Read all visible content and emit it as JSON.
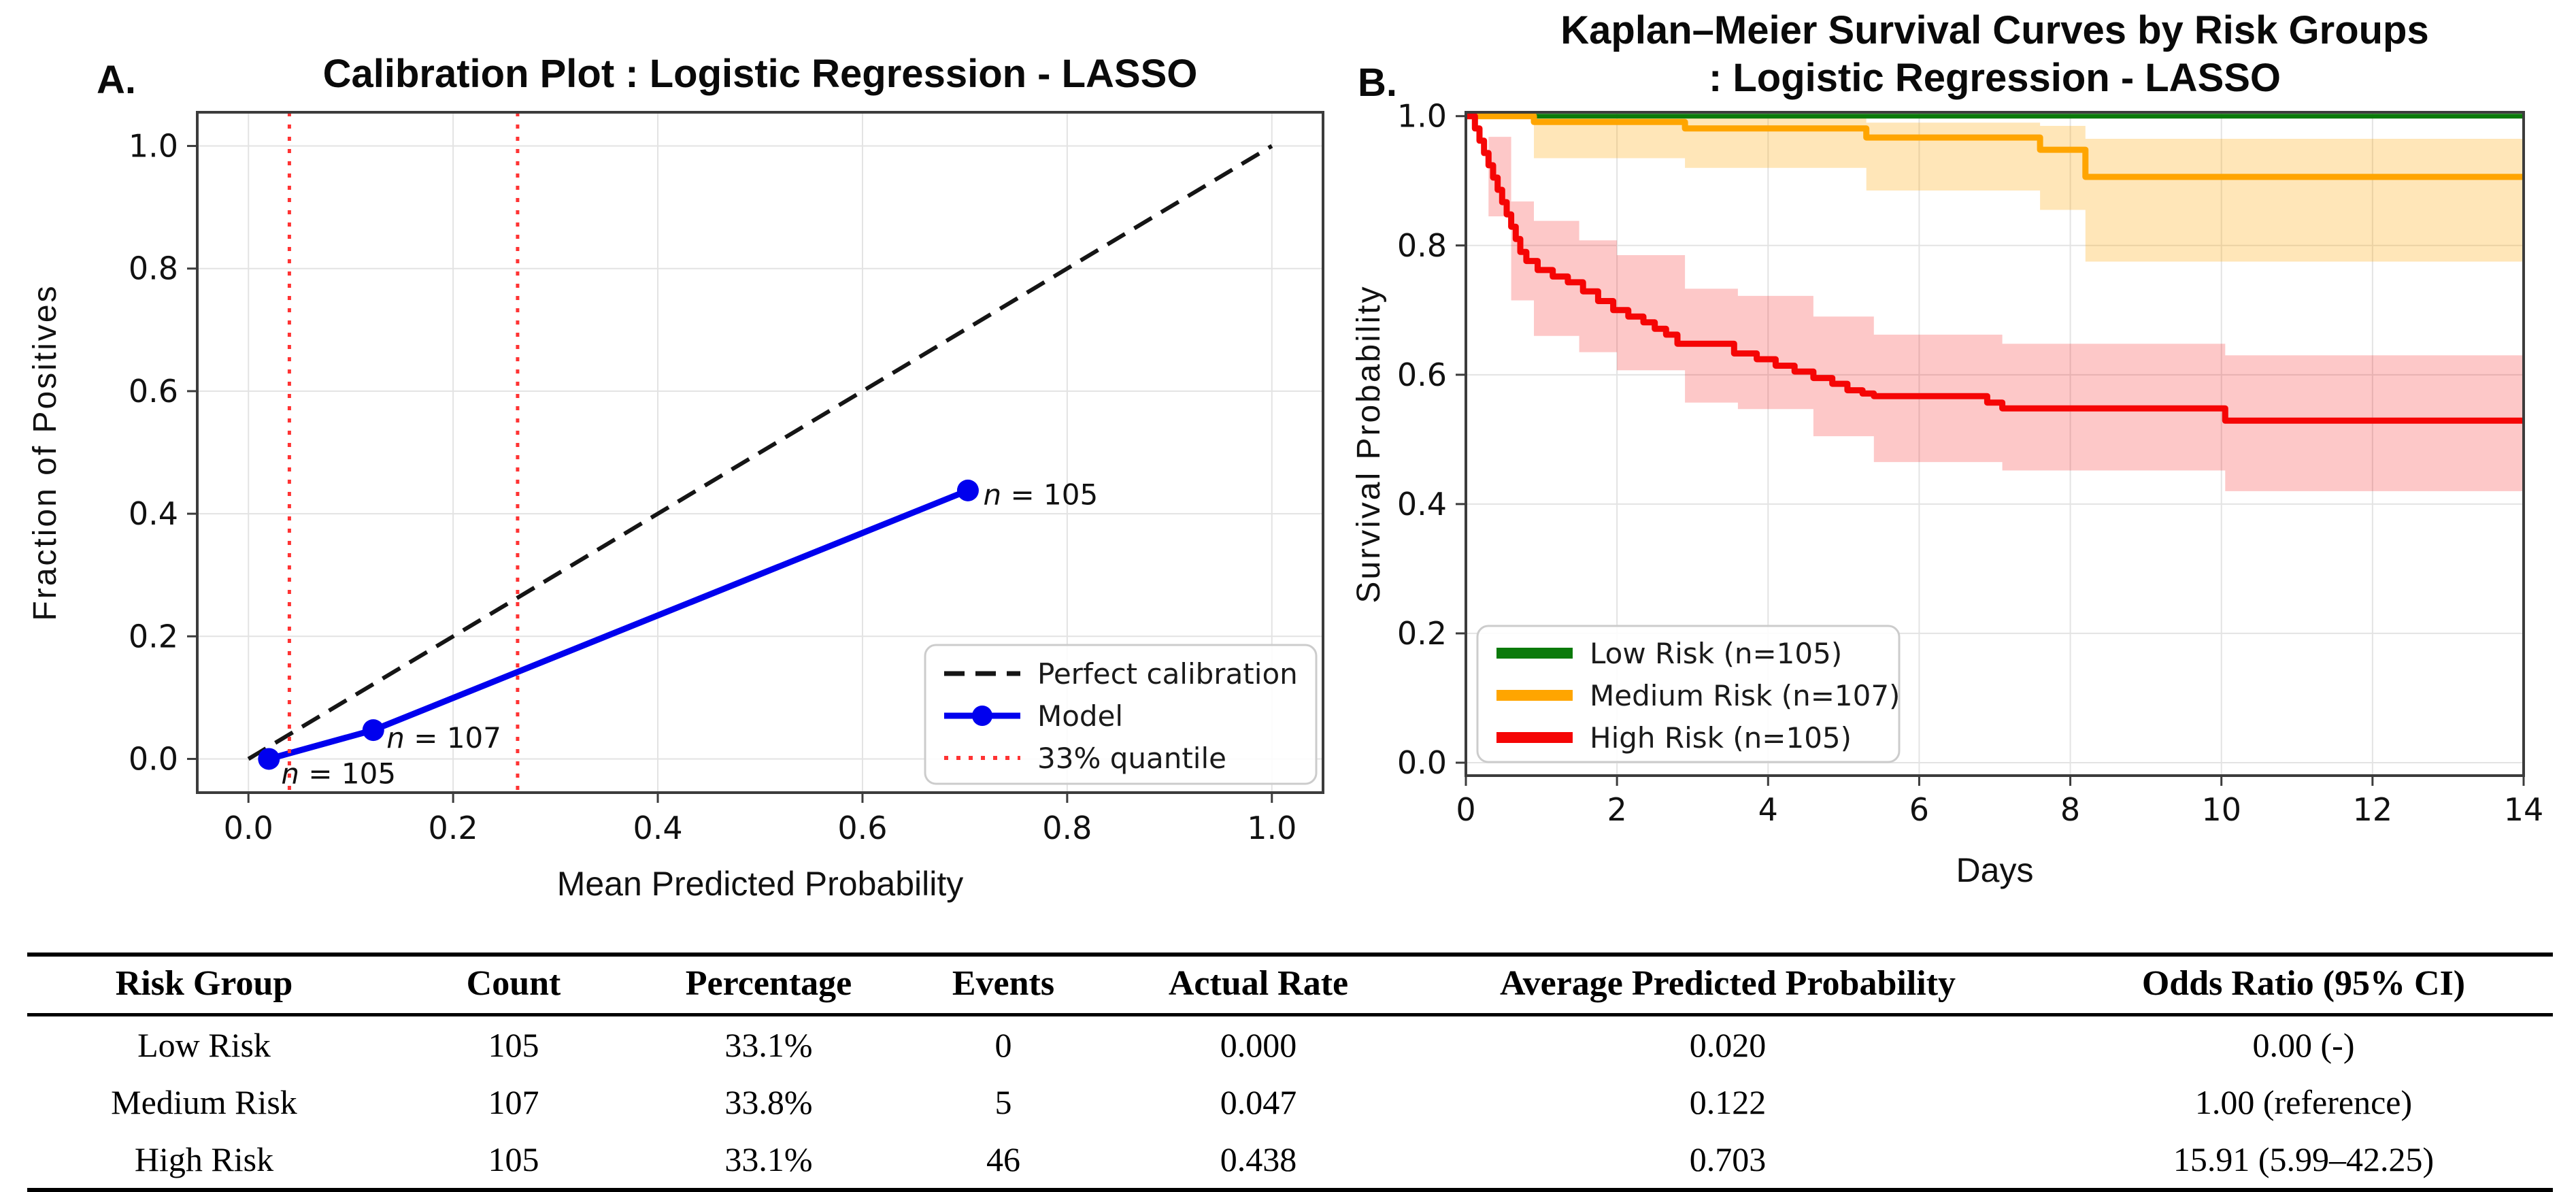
{
  "figure": {
    "panel_a_label": "A.",
    "panel_b_label": "B.",
    "background": "#ffffff"
  },
  "colors": {
    "grid": "#e3e3e3",
    "spine": "#3c3c3c",
    "text": "#111111",
    "model_blue": "#0000ee",
    "perfect_black": "#151515",
    "quantile_red": "#ff3333",
    "low_risk_green": "#0b7a0b",
    "medium_risk_orange": "#ffa500",
    "high_risk_red": "#f50505"
  },
  "chart_data": [
    {
      "id": "calibration",
      "type": "line",
      "title": "Calibration Plot : Logistic Regression - LASSO",
      "xlabel": "Mean Predicted Probability",
      "ylabel": "Fraction of Positives",
      "xlim": [
        -0.05,
        1.05
      ],
      "ylim": [
        -0.055,
        1.055
      ],
      "grid": true,
      "xticks": [
        0.0,
        0.2,
        0.4,
        0.6,
        0.8,
        1.0
      ],
      "xtick_labels": [
        "0.0",
        "0.2",
        "0.4",
        "0.6",
        "0.8",
        "1.0"
      ],
      "yticks": [
        0.0,
        0.2,
        0.4,
        0.6,
        0.8,
        1.0
      ],
      "ytick_labels": [
        "0.0",
        "0.2",
        "0.4",
        "0.6",
        "0.8",
        "1.0"
      ],
      "series": [
        {
          "name": "Perfect calibration",
          "kind": "line",
          "color": "#151515",
          "width": 6,
          "dash": "30 16",
          "points": {
            "x": [
              0,
              1
            ],
            "y": [
              0,
              1
            ]
          }
        },
        {
          "name": "Model",
          "kind": "line",
          "color": "#0000ee",
          "width": 9,
          "marker": 16,
          "points": {
            "x": [
              0.02,
              0.122,
              0.703
            ],
            "y": [
              0.0,
              0.047,
              0.438
            ]
          }
        },
        {
          "name": "33% quantile",
          "kind": "vlines",
          "color": "#ff3333",
          "width": 5,
          "dash": "6 12",
          "xs": [
            0.04,
            0.263
          ]
        }
      ],
      "annotations": [
        {
          "text": "n = 105",
          "x": 0.032,
          "y": -0.04
        },
        {
          "text": "n = 107",
          "x": 0.135,
          "y": 0.018
        },
        {
          "text": "n = 105",
          "x": 0.718,
          "y": 0.415
        }
      ],
      "legend": {
        "position": "lower right",
        "items": [
          {
            "label": "Perfect calibration",
            "swatch": "dash",
            "color": "#151515"
          },
          {
            "label": "Model",
            "swatch": "dot-line",
            "color": "#0000ee"
          },
          {
            "label": "33% quantile",
            "swatch": "dotted",
            "color": "#ff3333"
          }
        ]
      }
    },
    {
      "id": "km",
      "type": "step",
      "title_lines": [
        "Kaplan–Meier Survival Curves by Risk Groups",
        ": Logistic Regression - LASSO"
      ],
      "xlabel": "Days",
      "ylabel": "Survival Probability",
      "xlim": [
        0,
        14
      ],
      "ylim": [
        -0.02,
        1.006
      ],
      "grid": true,
      "xticks": [
        0,
        2,
        4,
        6,
        8,
        10,
        12,
        14
      ],
      "xtick_labels": [
        "0",
        "2",
        "4",
        "6",
        "8",
        "10",
        "12",
        "14"
      ],
      "yticks": [
        0.0,
        0.2,
        0.4,
        0.6,
        0.8,
        1.0
      ],
      "ytick_labels": [
        "0.0",
        "0.2",
        "0.4",
        "0.6",
        "0.8",
        "1.0"
      ],
      "series": [
        {
          "name": "Low Risk (n=105)",
          "kind": "step",
          "color": "#0b7a0b",
          "width": 7,
          "x": [
            0
          ],
          "y": [
            1.0
          ],
          "end": 14
        },
        {
          "name": "Medium Risk (n=107)",
          "kind": "step",
          "color": "#ffa500",
          "width": 9,
          "x": [
            0,
            0.9,
            2.9,
            5.3,
            7.6,
            8.2
          ],
          "y": [
            1.0,
            0.991,
            0.981,
            0.967,
            0.948,
            0.906
          ],
          "end": 14,
          "band": {
            "opacity": 0.28,
            "x": [
              0,
              0.9,
              2.9,
              5.3,
              7.6,
              8.2
            ],
            "lower": [
              1.0,
              0.935,
              0.92,
              0.885,
              0.855,
              0.775
            ],
            "upper": [
              1.0,
              0.999,
              0.997,
              0.99,
              0.985,
              0.965
            ]
          }
        },
        {
          "name": "High Risk (n=105)",
          "kind": "step",
          "color": "#f50505",
          "width": 9,
          "x": [
            0,
            0.12,
            0.18,
            0.24,
            0.3,
            0.36,
            0.42,
            0.48,
            0.54,
            0.6,
            0.66,
            0.72,
            0.8,
            0.95,
            1.15,
            1.35,
            1.55,
            1.75,
            1.95,
            2.15,
            2.35,
            2.5,
            2.65,
            2.8,
            3.55,
            3.85,
            4.1,
            4.35,
            4.6,
            4.85,
            5.05,
            5.25,
            5.4,
            6.9,
            7.1,
            10.05
          ],
          "y": [
            1.0,
            0.981,
            0.962,
            0.943,
            0.924,
            0.905,
            0.886,
            0.867,
            0.848,
            0.829,
            0.81,
            0.79,
            0.776,
            0.762,
            0.752,
            0.743,
            0.729,
            0.714,
            0.7,
            0.69,
            0.681,
            0.671,
            0.662,
            0.648,
            0.633,
            0.624,
            0.614,
            0.605,
            0.595,
            0.586,
            0.576,
            0.571,
            0.567,
            0.557,
            0.548,
            0.529
          ],
          "end": 14,
          "band": {
            "opacity": 0.22,
            "x": [
              0,
              0.3,
              0.6,
              0.9,
              1.5,
              2.0,
              2.9,
              3.6,
              4.6,
              5.4,
              7.1,
              10.05
            ],
            "lower": [
              1.0,
              0.845,
              0.715,
              0.66,
              0.635,
              0.607,
              0.557,
              0.547,
              0.505,
              0.465,
              0.452,
              0.42
            ],
            "upper": [
              1.0,
              0.968,
              0.868,
              0.838,
              0.808,
              0.785,
              0.733,
              0.722,
              0.69,
              0.662,
              0.648,
              0.63
            ]
          }
        }
      ],
      "legend": {
        "position": "lower left",
        "items": [
          {
            "label": "Low Risk (n=105)",
            "swatch": "solid",
            "color": "#0b7a0b"
          },
          {
            "label": "Medium Risk (n=107)",
            "swatch": "solid",
            "color": "#ffa500"
          },
          {
            "label": "High Risk (n=105)",
            "swatch": "solid",
            "color": "#f50505"
          }
        ]
      }
    }
  ],
  "table": {
    "columns": [
      "Risk Group",
      "Count",
      "Percentage",
      "Events",
      "Actual Rate",
      "Average Predicted Probability",
      "Odds Ratio (95% CI)"
    ],
    "rows": [
      [
        "Low Risk",
        "105",
        "33.1%",
        "0",
        "0.000",
        "0.020",
        "0.00 (-)"
      ],
      [
        "Medium Risk",
        "107",
        "33.8%",
        "5",
        "0.047",
        "0.122",
        "1.00 (reference)"
      ],
      [
        "High Risk",
        "105",
        "33.1%",
        "46",
        "0.438",
        "0.703",
        "15.91 (5.99–42.25)"
      ]
    ]
  }
}
